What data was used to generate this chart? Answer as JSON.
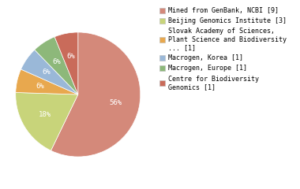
{
  "labels": [
    "Mined from GenBank, NCBI [9]",
    "Beijing Genomics Institute [3]",
    "Slovak Academy of Sciences,\nPlant Science and Biodiversity\n... [1]",
    "Macrogen, Korea [1]",
    "Macrogen, Europe [1]",
    "Centre for Biodiversity\nGenomics [1]"
  ],
  "values": [
    56,
    18,
    6,
    6,
    6,
    6
  ],
  "colors": [
    "#d4897a",
    "#c8d47a",
    "#e8a84e",
    "#9ab8d8",
    "#8db87a",
    "#c96b5a"
  ],
  "pct_labels": [
    "56%",
    "18%",
    "6%",
    "6%",
    "6%",
    "6%"
  ],
  "text_color": "white",
  "background_color": "#ffffff",
  "startangle": 90
}
